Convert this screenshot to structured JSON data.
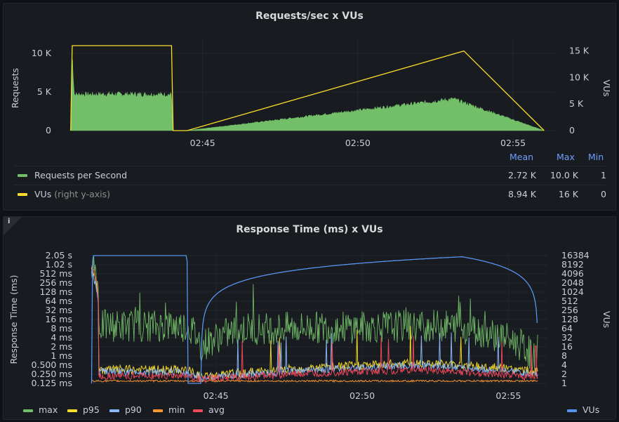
{
  "chart_data": [
    {
      "type": "line",
      "title": "Requests/sec x VUs",
      "ylabel": "Requests",
      "y2label": "VUs",
      "ylim": [
        0,
        11000
      ],
      "y2lim": [
        0,
        16000
      ],
      "yticks": [
        {
          "v": 0,
          "t": "0"
        },
        {
          "v": 5000,
          "t": "5 K"
        },
        {
          "v": 10000,
          "t": "10 K"
        }
      ],
      "y2ticks": [
        {
          "v": 0,
          "t": "0"
        },
        {
          "v": 5000,
          "t": "5 K"
        },
        {
          "v": 10000,
          "t": "10 K"
        },
        {
          "v": 15000,
          "t": "15 K"
        }
      ],
      "xlim": [
        "02:40:40",
        "02:56:20"
      ],
      "xticks": [
        "02:45",
        "02:50",
        "02:55"
      ],
      "grid": true,
      "series": [
        {
          "name": "Requests per Second",
          "color": "#73bf69",
          "kind": "area",
          "points": [
            [
              "02:40:45",
              0
            ],
            [
              "02:40:48",
              10000
            ],
            [
              "02:40:52",
              4800
            ],
            [
              "02:42:00",
              4850
            ],
            [
              "02:44:00",
              4800
            ],
            [
              "02:44:03",
              0
            ],
            [
              "02:44:30",
              0
            ],
            [
              "02:53:05",
              4200
            ],
            [
              "02:56:00",
              0
            ]
          ]
        },
        {
          "name": "VUs",
          "axis": "right",
          "color": "#fade2a",
          "kind": "line",
          "points": [
            [
              "02:40:45",
              0
            ],
            [
              "02:40:48",
              16000
            ],
            [
              "02:44:00",
              16000
            ],
            [
              "02:44:03",
              0
            ],
            [
              "02:44:30",
              0
            ],
            [
              "02:53:25",
              15000
            ],
            [
              "02:56:00",
              0
            ]
          ]
        }
      ],
      "legend": {
        "placement": "bottom",
        "columns": [
          "Mean",
          "Max",
          "Min"
        ],
        "rows": [
          {
            "name": "Requests per Second",
            "suffix": "",
            "color": "#73bf69",
            "mean": "2.72 K",
            "max": "10.0 K",
            "min": "1"
          },
          {
            "name": "VUs",
            "suffix": "(right y-axis)",
            "color": "#fade2a",
            "mean": "8.94 K",
            "max": "16 K",
            "min": "0"
          }
        ]
      }
    },
    {
      "type": "line",
      "title": "Response Time (ms) x VUs",
      "ylabel": "Response Time (ms)",
      "y2label": "VUs",
      "yscale": "log",
      "ylim": [
        0.125,
        2048
      ],
      "y2scale": "log",
      "y2lim": [
        1,
        16384
      ],
      "yticks": [
        "0.125 ms",
        "0.250 ms",
        "0.500 ms",
        "1 ms",
        "2 ms",
        "4 ms",
        "8 ms",
        "16 ms",
        "32 ms",
        "64 ms",
        "128 ms",
        "256 ms",
        "512 ms",
        "1.02 s",
        "2.05 s"
      ],
      "y2ticks": [
        "1",
        "2",
        "4",
        "8",
        "16",
        "32",
        "64",
        "128",
        "256",
        "512",
        "1024",
        "2048",
        "4096",
        "8192",
        "16384"
      ],
      "xlim": [
        "02:40:40",
        "02:56:20"
      ],
      "xticks": [
        "02:45",
        "02:50",
        "02:55"
      ],
      "grid": true,
      "series": [
        {
          "name": "max",
          "color": "#73bf69",
          "points": [
            [
              "02:40:45",
              1500
            ],
            [
              "02:41:00",
              10
            ],
            [
              "02:44:00",
              10
            ],
            [
              "02:44:30",
              2
            ],
            [
              "02:46:00",
              8
            ],
            [
              "02:53:00",
              10
            ],
            [
              "02:56:00",
              0.4
            ]
          ]
        },
        {
          "name": "p95",
          "color": "#fade2a",
          "points": [
            [
              "02:40:45",
              700
            ],
            [
              "02:41:00",
              0.35
            ],
            [
              "02:44:00",
              0.35
            ],
            [
              "02:44:30",
              0.2
            ],
            [
              "02:52:00",
              0.6
            ],
            [
              "02:56:00",
              0.3
            ]
          ]
        },
        {
          "name": "p90",
          "color": "#8ab8ff",
          "points": [
            [
              "02:40:45",
              500
            ],
            [
              "02:41:00",
              0.3
            ],
            [
              "02:44:00",
              0.3
            ],
            [
              "02:44:30",
              0.18
            ],
            [
              "02:52:00",
              0.5
            ],
            [
              "02:56:00",
              0.25
            ]
          ]
        },
        {
          "name": "min",
          "color": "#ff9830",
          "points": [
            [
              "02:40:45",
              0.15
            ],
            [
              "02:56:00",
              0.15
            ]
          ]
        },
        {
          "name": "avg",
          "color": "#f2495c",
          "points": [
            [
              "02:40:45",
              1000
            ],
            [
              "02:41:00",
              0.22
            ],
            [
              "02:44:00",
              0.22
            ],
            [
              "02:44:30",
              0.17
            ],
            [
              "02:52:00",
              0.35
            ],
            [
              "02:56:00",
              0.2
            ]
          ]
        },
        {
          "name": "VUs",
          "axis": "right",
          "color": "#5794f2",
          "points": [
            [
              "02:40:45",
              1
            ],
            [
              "02:40:48",
              16384
            ],
            [
              "02:44:00",
              16384
            ],
            [
              "02:44:03",
              1
            ],
            [
              "02:44:30",
              1
            ],
            [
              "02:53:25",
              15000
            ],
            [
              "02:56:00",
              1
            ]
          ]
        }
      ]
    }
  ],
  "info_icon": "i"
}
